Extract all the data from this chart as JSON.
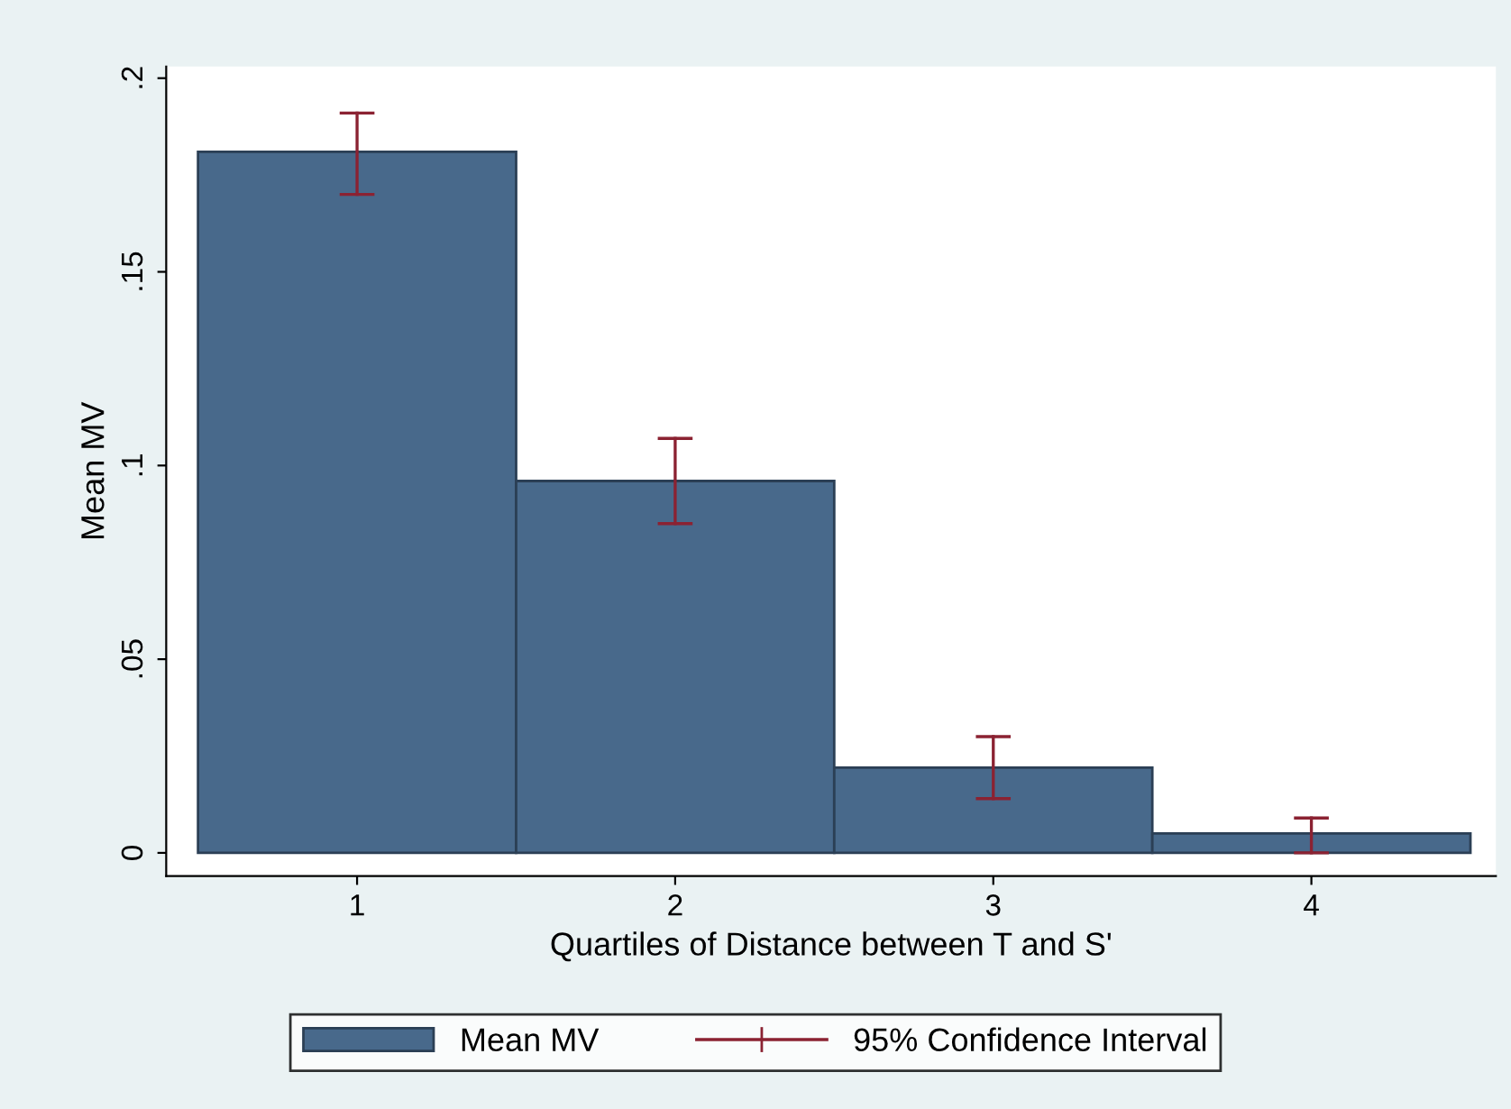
{
  "chart_data": {
    "type": "bar",
    "xlabel": "Quartiles of Distance between T and S'",
    "ylabel": "Mean MV",
    "categories": [
      "1",
      "2",
      "3",
      "4"
    ],
    "series": [
      {
        "name": "Mean MV",
        "color": "#48698b",
        "values": [
          0.181,
          0.096,
          0.022,
          0.005
        ],
        "errors": [
          [
            0.17,
            0.191
          ],
          [
            0.085,
            0.107
          ],
          [
            0.014,
            0.03
          ],
          [
            0.0,
            0.009
          ]
        ]
      }
    ],
    "annotations": [
      "95% Confidence Interval"
    ],
    "ylim": [
      -0.006,
      0.203
    ],
    "yticks": [
      {
        "value": 0,
        "label": "0"
      },
      {
        "value": 0.05,
        "label": ".05"
      },
      {
        "value": 0.1,
        "label": ".1"
      },
      {
        "value": 0.15,
        "label": ".15"
      },
      {
        "value": 0.2,
        "label": ".2"
      }
    ],
    "grid": false,
    "legend": "bottom"
  }
}
